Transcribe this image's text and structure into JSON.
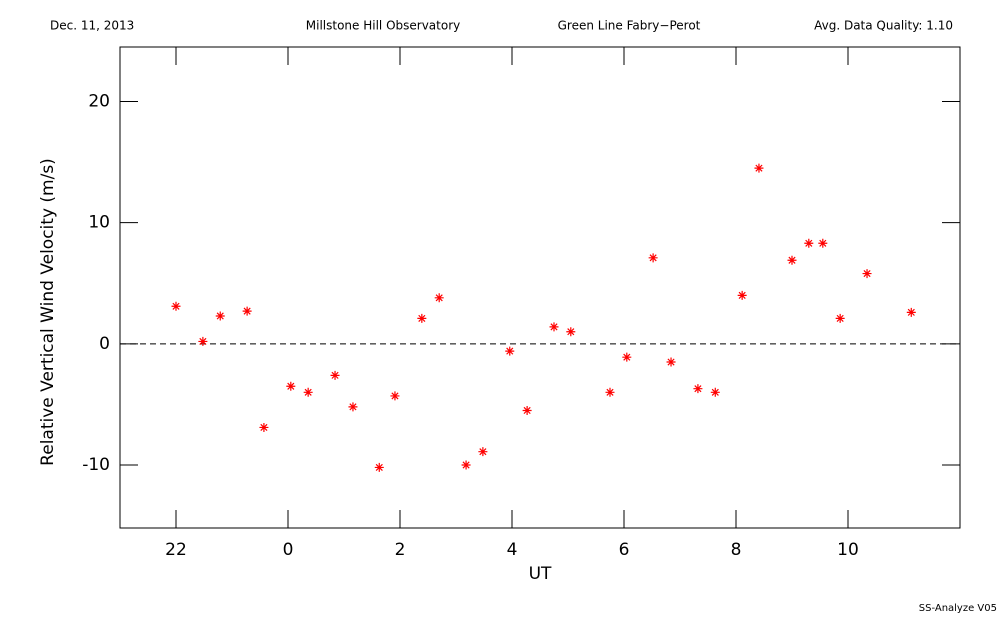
{
  "chart_data": {
    "type": "scatter",
    "header": [
      "Dec. 11, 2013",
      "Millstone Hill Observatory",
      "Green Line Fabry−Perot",
      "Avg. Data Quality: 1.10"
    ],
    "footer": "SS-Analyze V05",
    "xlabel": "UT",
    "ylabel": "Relative Vertical Wind Velocity (m/s)",
    "xlim": [
      21,
      36
    ],
    "ylim": [
      -15.2,
      24.5
    ],
    "xticks": [
      22,
      {
        "value": 24,
        "label": "0"
      },
      {
        "value": 26,
        "label": "2"
      },
      {
        "value": 28,
        "label": "4"
      },
      {
        "value": 30,
        "label": "6"
      },
      {
        "value": 32,
        "label": "8"
      },
      {
        "value": 34,
        "label": "10"
      }
    ],
    "yticks": [
      -10,
      0,
      10,
      20
    ],
    "hline": 0,
    "color": "#ff0000",
    "x": [
      22.0,
      22.48,
      22.79,
      23.27,
      23.57,
      24.05,
      24.36,
      24.84,
      25.16,
      25.63,
      25.91,
      26.39,
      26.7,
      27.18,
      27.48,
      27.96,
      28.27,
      28.75,
      29.05,
      29.75,
      30.05,
      30.52,
      30.84,
      31.32,
      31.63,
      32.11,
      32.41,
      33.0,
      33.3,
      33.55,
      33.86,
      34.34,
      35.13
    ],
    "values": [
      3.1,
      0.2,
      2.3,
      2.7,
      -6.9,
      -3.5,
      -4.0,
      -2.6,
      -5.2,
      -10.2,
      -4.3,
      2.1,
      3.8,
      -10.0,
      -8.9,
      -0.6,
      -5.5,
      1.4,
      1.0,
      -4.0,
      -1.1,
      7.1,
      -1.5,
      -3.7,
      -4.0,
      4.0,
      14.5,
      6.9,
      8.3,
      8.3,
      2.1,
      5.8,
      2.6
    ]
  }
}
